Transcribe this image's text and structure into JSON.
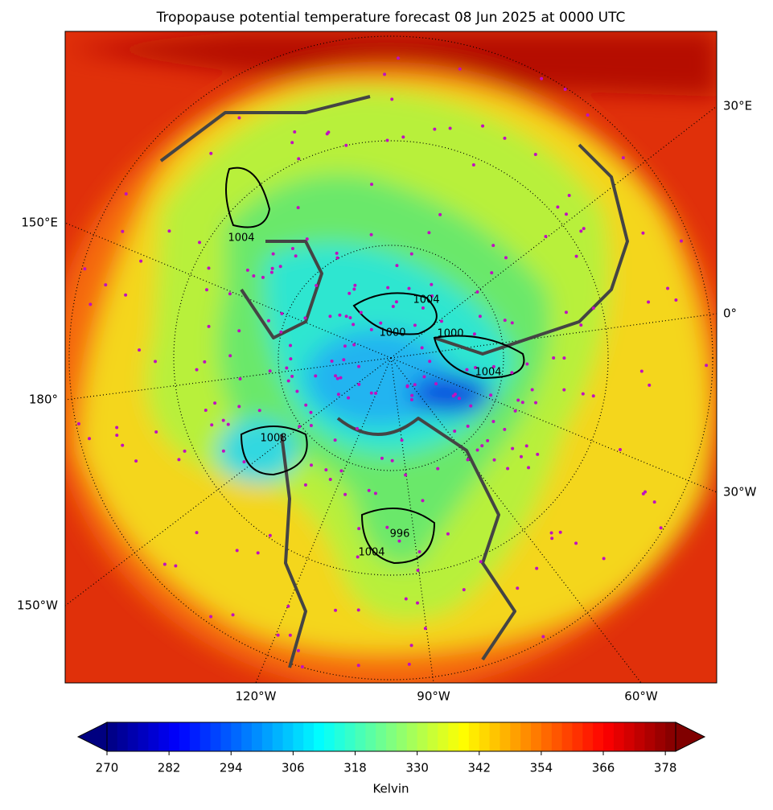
{
  "title": "Tropopause potential temperature forecast 08 Jun 2025 at 0000 UTC",
  "longitude_labels": [
    "30°E",
    "150°E",
    "0°",
    "180°",
    "30°W",
    "150°W",
    "120°W",
    "90°W",
    "60°W"
  ],
  "contour_labels": [
    "1004",
    "1004",
    "1000",
    "1000",
    "1004",
    "1008",
    "996",
    "1004"
  ],
  "colorbar": {
    "label": "Kelvin",
    "colormap": "jet",
    "range": [
      270,
      380
    ],
    "level_step": 2,
    "ticks": [
      270,
      282,
      294,
      306,
      318,
      330,
      342,
      354,
      366,
      378
    ]
  }
}
